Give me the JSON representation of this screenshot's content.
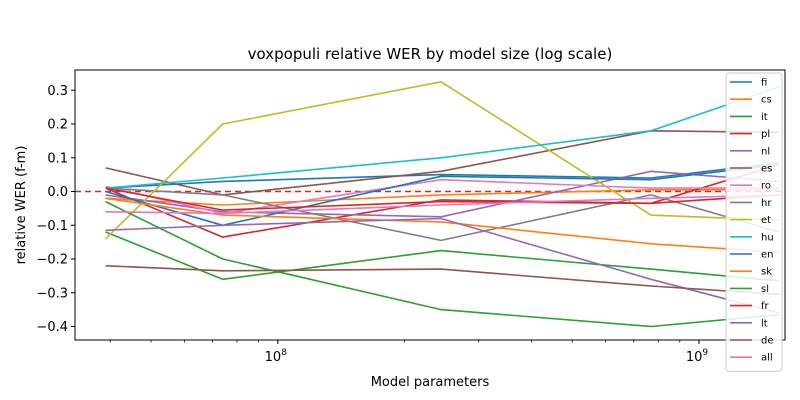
{
  "chart_data": {
    "type": "line",
    "title": "voxpopuli relative WER by model size (log scale)",
    "xlabel": "Model parameters",
    "ylabel": "relative WER (f-m)",
    "xscale": "log",
    "xlim": [
      33000000,
      1600000000
    ],
    "ylim": [
      -0.44,
      0.36
    ],
    "yticks": [
      -0.4,
      -0.3,
      -0.2,
      -0.1,
      0.0,
      0.1,
      0.2,
      0.3
    ],
    "ytick_labels": [
      "−0.4",
      "−0.3",
      "−0.2",
      "−0.1",
      "0.0",
      "0.1",
      "0.2",
      "0.3"
    ],
    "xticks": [
      {
        "value": 100000000,
        "base": "10",
        "exp": "8"
      },
      {
        "value": 1000000000,
        "base": "10",
        "exp": "9"
      }
    ],
    "reference_line": {
      "y": 0,
      "color": "#d62728",
      "style": "dashed"
    },
    "legend_position": "top-right",
    "x": [
      39000000,
      74000000,
      244000000,
      769000000,
      1550000000
    ],
    "series": [
      {
        "name": "fi",
        "color": "#1f77b4",
        "values": [
          0.01,
          0.03,
          0.05,
          0.04,
          0.085
        ]
      },
      {
        "name": "cs",
        "color": "#ff7f0e",
        "values": [
          -0.02,
          -0.04,
          -0.01,
          0.005,
          0.005
        ]
      },
      {
        "name": "it",
        "color": "#2ca02c",
        "values": [
          -0.12,
          -0.26,
          -0.175,
          -0.23,
          -0.265
        ]
      },
      {
        "name": "pl",
        "color": "#d62728",
        "values": [
          0.01,
          -0.135,
          -0.025,
          -0.035,
          0.08
        ]
      },
      {
        "name": "nl",
        "color": "#9467bd",
        "values": [
          -0.01,
          -0.06,
          -0.075,
          0.06,
          0.03
        ]
      },
      {
        "name": "es",
        "color": "#8c564b",
        "values": [
          0.07,
          -0.01,
          0.06,
          0.18,
          0.175
        ]
      },
      {
        "name": "ro",
        "color": "#e377c2",
        "values": [
          0.015,
          -0.065,
          0.035,
          0.01,
          0.01
        ]
      },
      {
        "name": "hr",
        "color": "#7f7f7f",
        "values": [
          0.01,
          -0.01,
          -0.145,
          -0.01,
          -0.12
        ]
      },
      {
        "name": "et",
        "color": "#bcbd22",
        "values": [
          -0.14,
          0.2,
          0.325,
          -0.07,
          -0.085
        ]
      },
      {
        "name": "hu",
        "color": "#17becf",
        "values": [
          0.01,
          0.04,
          0.1,
          0.18,
          0.31
        ]
      },
      {
        "name": "en",
        "color": "#1f77b4",
        "values": [
          0.0,
          -0.1,
          0.045,
          0.035,
          0.08
        ]
      },
      {
        "name": "sk",
        "color": "#ff7f0e",
        "values": [
          -0.02,
          -0.07,
          -0.09,
          -0.155,
          -0.18
        ]
      },
      {
        "name": "sl",
        "color": "#2ca02c",
        "values": [
          -0.03,
          -0.2,
          -0.35,
          -0.4,
          -0.365
        ]
      },
      {
        "name": "fr",
        "color": "#d62728",
        "values": [
          0.01,
          -0.055,
          -0.03,
          -0.035,
          -0.01
        ]
      },
      {
        "name": "lt",
        "color": "#9467bd",
        "values": [
          -0.115,
          -0.1,
          -0.08,
          -0.26,
          -0.36
        ]
      },
      {
        "name": "de",
        "color": "#8c564b",
        "values": [
          -0.22,
          -0.235,
          -0.23,
          -0.28,
          -0.305
        ]
      },
      {
        "name": "all",
        "color": "#e377c2",
        "values": [
          -0.06,
          -0.065,
          -0.04,
          -0.02,
          -0.01
        ]
      }
    ]
  }
}
